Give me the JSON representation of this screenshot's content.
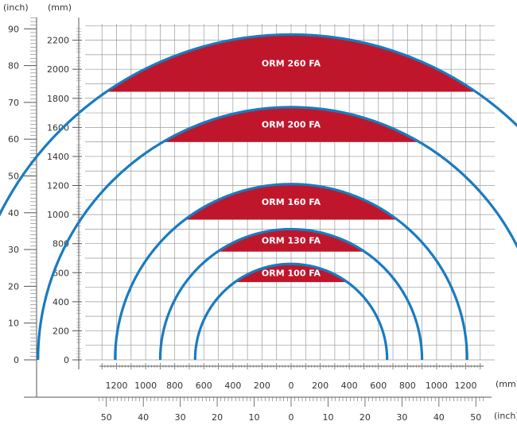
{
  "units": {
    "inch_left": "(inch)",
    "mm_left": "(mm)",
    "mm_bottom": "(mm)",
    "inch_bottom": "(inch)"
  },
  "inch_y_ticks": [
    "0",
    "10",
    "20",
    "30",
    "40",
    "50",
    "60",
    "70",
    "80",
    "90"
  ],
  "mm_y_ticks": [
    "0",
    "200",
    "400",
    "600",
    "800",
    "1000",
    "1200",
    "1400",
    "1600",
    "1800",
    "2000",
    "2200"
  ],
  "mm_x_ticks": [
    "1200",
    "1000",
    "800",
    "600",
    "400",
    "200",
    "0",
    "200",
    "400",
    "600",
    "800",
    "1000",
    "1200"
  ],
  "inch_x_ticks": [
    "50",
    "40",
    "30",
    "20",
    "10",
    "0",
    "10",
    "20",
    "30",
    "40",
    "50"
  ],
  "colors": {
    "arc": "#1a7bbf",
    "zone": "#c0162b",
    "grid": "#9a9a9a"
  },
  "zones": [
    {
      "label": "ORM 100 FA",
      "radius_mm": 660,
      "zone_bottom_mm": 535
    },
    {
      "label": "ORM 130 FA",
      "radius_mm": 900,
      "zone_bottom_mm": 745
    },
    {
      "label": "ORM 160 FA",
      "radius_mm": 1210,
      "zone_bottom_mm": 965
    },
    {
      "label": "ORM 200 FA",
      "radius_mm": 1740,
      "zone_bottom_mm": 1500
    },
    {
      "label": "ORM 260 FA",
      "radius_mm": 2240,
      "zone_bottom_mm": 1845
    }
  ]
}
